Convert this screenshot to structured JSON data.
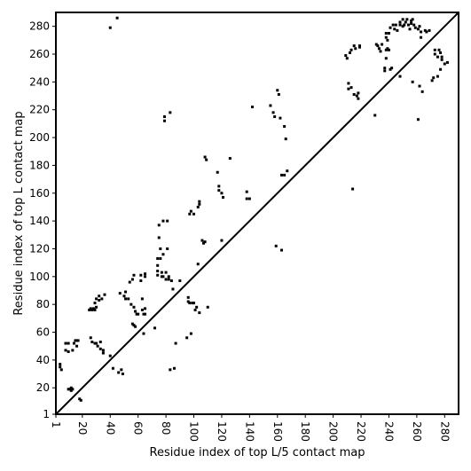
{
  "chart_data": {
    "type": "scatter",
    "title": "",
    "xlabel": "Residue index of top L/5 contact map",
    "ylabel": "Residue index of top L contact map",
    "xlim": [
      1,
      290
    ],
    "ylim": [
      1,
      290
    ],
    "x_tick_labels": [
      "1",
      "20",
      "40",
      "60",
      "80",
      "100",
      "120",
      "140",
      "160",
      "180",
      "200",
      "220",
      "240",
      "260",
      "280"
    ],
    "y_tick_labels": [
      "1",
      "20",
      "40",
      "60",
      "80",
      "100",
      "120",
      "140",
      "160",
      "180",
      "200",
      "220",
      "240",
      "260",
      "280"
    ],
    "x_tick_rotation_deg": -90,
    "grid": false,
    "legend": "none",
    "diagonal": {
      "from": [
        1,
        1
      ],
      "to": [
        290,
        290
      ],
      "color": "#000000"
    },
    "series": [
      {
        "region": "upper-left",
        "marker_color": "#000000",
        "points": [
          [
            4,
            37
          ],
          [
            4,
            35
          ],
          [
            5,
            33
          ],
          [
            8,
            52
          ],
          [
            8,
            47
          ],
          [
            10,
            52
          ],
          [
            10,
            46
          ],
          [
            10,
            19
          ],
          [
            11,
            19
          ],
          [
            12,
            20
          ],
          [
            12,
            18
          ],
          [
            13,
            47
          ],
          [
            13,
            19
          ],
          [
            14,
            52
          ],
          [
            15,
            54
          ],
          [
            16,
            54
          ],
          [
            16,
            50
          ],
          [
            17,
            54
          ],
          [
            18,
            12
          ],
          [
            19,
            11
          ],
          [
            25,
            76
          ],
          [
            26,
            77
          ],
          [
            26,
            56
          ],
          [
            27,
            76
          ],
          [
            27,
            53
          ],
          [
            28,
            77
          ],
          [
            29,
            81
          ],
          [
            29,
            76
          ],
          [
            29,
            52
          ],
          [
            30,
            84
          ],
          [
            30,
            78
          ],
          [
            30,
            52
          ],
          [
            31,
            50
          ],
          [
            32,
            86
          ],
          [
            32,
            83
          ],
          [
            33,
            53
          ],
          [
            33,
            48
          ],
          [
            34,
            84
          ],
          [
            35,
            47
          ],
          [
            35,
            45
          ],
          [
            36,
            87
          ],
          [
            40,
            279
          ],
          [
            40,
            43
          ],
          [
            42,
            34
          ],
          [
            45,
            286
          ],
          [
            46,
            31
          ],
          [
            47,
            88
          ],
          [
            48,
            33
          ],
          [
            49,
            30
          ],
          [
            50,
            86
          ],
          [
            51,
            89
          ],
          [
            51,
            84
          ],
          [
            53,
            84
          ],
          [
            54,
            96
          ],
          [
            55,
            80
          ],
          [
            56,
            98
          ],
          [
            56,
            66
          ],
          [
            57,
            101
          ],
          [
            57,
            65
          ],
          [
            57,
            78
          ],
          [
            58,
            64
          ],
          [
            58,
            75
          ],
          [
            59,
            73
          ],
          [
            60,
            73
          ],
          [
            62,
            101
          ],
          [
            62,
            97
          ],
          [
            63,
            84
          ],
          [
            63,
            76
          ],
          [
            64,
            73
          ],
          [
            64,
            59
          ],
          [
            65,
            102
          ],
          [
            65,
            100
          ],
          [
            65,
            77
          ],
          [
            65,
            73
          ],
          [
            72,
            63
          ],
          [
            74,
            113
          ],
          [
            74,
            108
          ],
          [
            74,
            104
          ],
          [
            74,
            101
          ],
          [
            75,
            128
          ],
          [
            75,
            137
          ],
          [
            76,
            120
          ],
          [
            76,
            113
          ],
          [
            77,
            103
          ],
          [
            77,
            100
          ],
          [
            78,
            140
          ],
          [
            78,
            116
          ],
          [
            78,
            100
          ],
          [
            79,
            215
          ],
          [
            79,
            212
          ],
          [
            80,
            103
          ],
          [
            80,
            98
          ],
          [
            81,
            120
          ],
          [
            81,
            140
          ],
          [
            82,
            100
          ],
          [
            82,
            98
          ],
          [
            83,
            218
          ],
          [
            83,
            33
          ],
          [
            84,
            97
          ],
          [
            85,
            91
          ],
          [
            86,
            34
          ],
          [
            87,
            52
          ],
          [
            90,
            97
          ],
          [
            95,
            56
          ],
          [
            96,
            85
          ],
          [
            96,
            82
          ],
          [
            97,
            145
          ],
          [
            97,
            81
          ],
          [
            98,
            147
          ],
          [
            98,
            59
          ],
          [
            99,
            81
          ],
          [
            100,
            145
          ],
          [
            100,
            81
          ],
          [
            101,
            76
          ],
          [
            102,
            78
          ],
          [
            103,
            150
          ],
          [
            103,
            109
          ],
          [
            104,
            154
          ],
          [
            104,
            152
          ],
          [
            104,
            74
          ],
          [
            106,
            126
          ],
          [
            107,
            124
          ],
          [
            108,
            125
          ],
          [
            108,
            186
          ],
          [
            109,
            184
          ],
          [
            110,
            78
          ],
          [
            117,
            175
          ],
          [
            118,
            165
          ],
          [
            118,
            162
          ],
          [
            120,
            160
          ],
          [
            120,
            126
          ],
          [
            121,
            157
          ],
          [
            126,
            185
          ],
          [
            138,
            161
          ],
          [
            138,
            156
          ],
          [
            140,
            156
          ],
          [
            142,
            222
          ],
          [
            155,
            223
          ],
          [
            157,
            218
          ],
          [
            158,
            215
          ],
          [
            159,
            122
          ],
          [
            160,
            234
          ],
          [
            161,
            231
          ],
          [
            162,
            214
          ],
          [
            163,
            119
          ],
          [
            163,
            173
          ],
          [
            165,
            173
          ],
          [
            165,
            208
          ],
          [
            166,
            199
          ],
          [
            167,
            176
          ],
          [
            209,
            259
          ],
          [
            210,
            257
          ],
          [
            211,
            239
          ],
          [
            211,
            235
          ],
          [
            212,
            261
          ],
          [
            213,
            263
          ],
          [
            213,
            236
          ],
          [
            214,
            163
          ],
          [
            215,
            231
          ],
          [
            215,
            266
          ],
          [
            216,
            264
          ],
          [
            217,
            230
          ],
          [
            218,
            228
          ],
          [
            218,
            232
          ],
          [
            219,
            265
          ],
          [
            219,
            266
          ],
          [
            230,
            216
          ],
          [
            231,
            267
          ],
          [
            232,
            266
          ],
          [
            233,
            264
          ],
          [
            234,
            262
          ],
          [
            235,
            267
          ],
          [
            237,
            250
          ],
          [
            237,
            248
          ],
          [
            238,
            275
          ],
          [
            238,
            272
          ],
          [
            238,
            263
          ],
          [
            238,
            257
          ],
          [
            239,
            270
          ],
          [
            239,
            264
          ],
          [
            240,
            275
          ],
          [
            240,
            263
          ],
          [
            241,
            279
          ],
          [
            241,
            249
          ],
          [
            242,
            250
          ],
          [
            243,
            281
          ],
          [
            244,
            278
          ],
          [
            245,
            281
          ],
          [
            246,
            277
          ],
          [
            248,
            283
          ],
          [
            248,
            281
          ],
          [
            248,
            244
          ],
          [
            250,
            285
          ],
          [
            250,
            280
          ],
          [
            251,
            281
          ],
          [
            252,
            283
          ],
          [
            253,
            285
          ],
          [
            254,
            281
          ],
          [
            255,
            278
          ],
          [
            256,
            284
          ],
          [
            256,
            282
          ],
          [
            257,
            285
          ],
          [
            257,
            240
          ],
          [
            258,
            281
          ],
          [
            259,
            279
          ],
          [
            261,
            278
          ],
          [
            261,
            213
          ],
          [
            262,
            280
          ],
          [
            262,
            237
          ],
          [
            263,
            276
          ],
          [
            263,
            272
          ],
          [
            264,
            233
          ],
          [
            266,
            277
          ],
          [
            267,
            276
          ],
          [
            269,
            277
          ],
          [
            271,
            241
          ],
          [
            272,
            243
          ],
          [
            273,
            263
          ],
          [
            273,
            260
          ],
          [
            275,
            258
          ],
          [
            275,
            244
          ],
          [
            276,
            263
          ],
          [
            277,
            261
          ],
          [
            277,
            249
          ],
          [
            278,
            256
          ],
          [
            278,
            258
          ],
          [
            280,
            253
          ],
          [
            282,
            254
          ]
        ]
      }
    ]
  }
}
